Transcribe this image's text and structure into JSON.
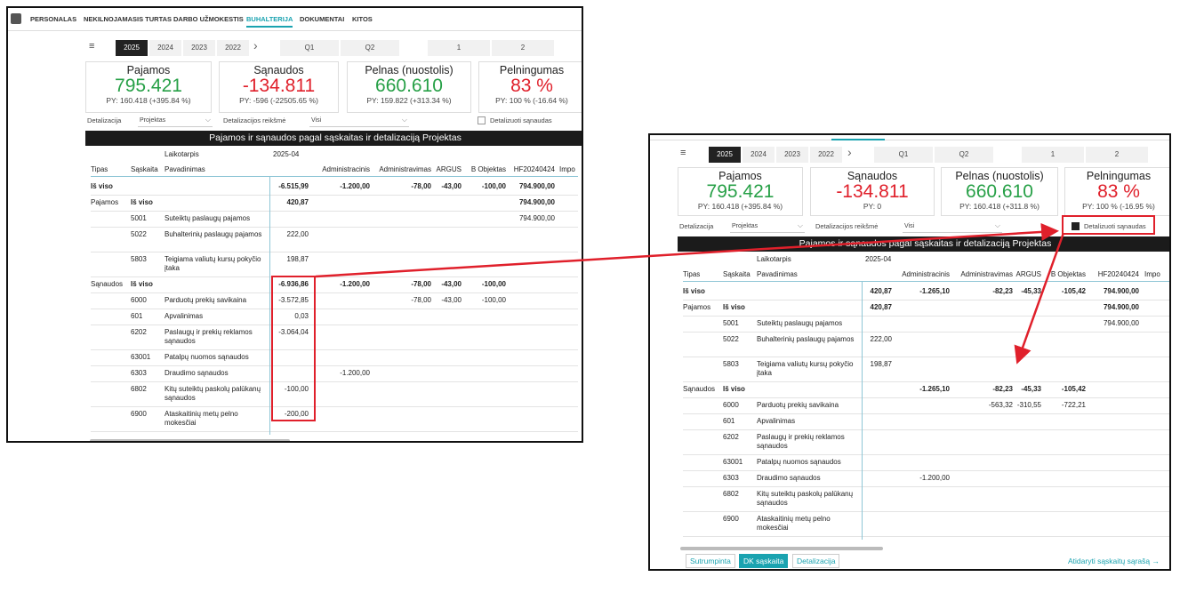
{
  "nav": {
    "items": [
      "PERSONALAS",
      "NEKILNOJAMASIS TURTAS",
      "DARBO UŽMOKESTIS",
      "BUHALTERIJA",
      "DOKUMENTAI",
      "KITOS"
    ]
  },
  "periods": {
    "years": [
      "2025",
      "2024",
      "2023",
      "2022"
    ],
    "quarters": [
      "Q1",
      "Q2"
    ],
    "months": [
      "1",
      "2"
    ]
  },
  "w1": {
    "cards": [
      {
        "title": "Pajamos",
        "value": "795.421",
        "py": "PY: 160.418 (+395.84 %)",
        "color": "green"
      },
      {
        "title": "Sąnaudos",
        "value": "-134.811",
        "py": "PY: -596 (-22505.65 %)",
        "color": "red"
      },
      {
        "title": "Pelnas (nuostolis)",
        "value": "660.610",
        "py": "PY: 159.822 (+313.34 %)",
        "color": "green"
      },
      {
        "title": "Pelningumas",
        "value": "83 %",
        "py": "PY: 100 % (-16.64 %)",
        "color": "red"
      }
    ],
    "filters": {
      "detalizacija_label": "Detalizacija",
      "detalizacija_value": "Projektas",
      "reiksme_label": "Detalizacijos reikšmė",
      "reiksme_value": "Visi",
      "checkbox_label": "Detalizuoti sąnaudas"
    },
    "table_title": "Pajamos ir sąnaudos pagal sąskaitas ir detalizaciją Projektas",
    "laikotarpis": "Laikotarpis",
    "period": "2025-04",
    "headers": [
      "Tipas",
      "Sąskaita",
      "Pavadinimas"
    ],
    "cols": [
      "Administracinis",
      "Administravimas",
      "ARGUS",
      "B Objektas",
      "HF20240424",
      "Impo"
    ],
    "rows": [
      {
        "tipas": "Iš viso",
        "saskaita": "",
        "pav": "",
        "total": "-6.515,99",
        "vals": [
          "-1.200,00",
          "-78,00",
          "-43,00",
          "-100,00",
          "794.900,00"
        ],
        "bold": true
      },
      {
        "tipas": "Pajamos",
        "saskaita": "Iš viso",
        "pav": "",
        "total": "420,87",
        "vals": [
          "",
          "",
          "",
          "",
          "794.900,00"
        ],
        "bold": true
      },
      {
        "tipas": "",
        "saskaita": "5001",
        "pav": "Suteiktų paslaugų pajamos",
        "total": "",
        "vals": [
          "",
          "",
          "",
          "",
          "794.900,00"
        ]
      },
      {
        "tipas": "",
        "saskaita": "5022",
        "pav": "Buhalterinių paslaugų pajamos",
        "total": "222,00",
        "vals": [
          "",
          "",
          "",
          "",
          ""
        ]
      },
      {
        "tipas": "",
        "saskaita": "5803",
        "pav": "Teigiama valiutų kursų pokyčio įtaka",
        "total": "198,87",
        "vals": [
          "",
          "",
          "",
          "",
          ""
        ]
      },
      {
        "tipas": "Sąnaudos",
        "saskaita": "Iš viso",
        "pav": "",
        "total": "-6.936,86",
        "vals": [
          "-1.200,00",
          "-78,00",
          "-43,00",
          "-100,00",
          ""
        ],
        "bold": true
      },
      {
        "tipas": "",
        "saskaita": "6000",
        "pav": "Parduotų prekių savikaina",
        "total": "-3.572,85",
        "vals": [
          "",
          "-78,00",
          "-43,00",
          "-100,00",
          ""
        ]
      },
      {
        "tipas": "",
        "saskaita": "601",
        "pav": "Apvalinimas",
        "total": "0,03",
        "vals": [
          "",
          "",
          "",
          "",
          ""
        ]
      },
      {
        "tipas": "",
        "saskaita": "6202",
        "pav": "Paslaugų ir prekių reklamos sąnaudos",
        "total": "-3.064,04",
        "vals": [
          "",
          "",
          "",
          "",
          ""
        ]
      },
      {
        "tipas": "",
        "saskaita": "63001",
        "pav": "Patalpų nuomos sąnaudos",
        "total": "",
        "vals": [
          "",
          "",
          "",
          "",
          ""
        ]
      },
      {
        "tipas": "",
        "saskaita": "6303",
        "pav": "Draudimo sąnaudos",
        "total": "",
        "vals": [
          "-1.200,00",
          "",
          "",
          "",
          ""
        ]
      },
      {
        "tipas": "",
        "saskaita": "6802",
        "pav": "Kitų suteiktų paskolų palūkanų sąnaudos",
        "total": "-100,00",
        "vals": [
          "",
          "",
          "",
          "",
          ""
        ]
      },
      {
        "tipas": "",
        "saskaita": "6900",
        "pav": "Ataskaitinių metų pelno mokesčiai",
        "total": "-200,00",
        "vals": [
          "",
          "",
          "",
          "",
          ""
        ]
      }
    ]
  },
  "w2": {
    "cards": [
      {
        "title": "Pajamos",
        "value": "795.421",
        "py": "PY: 160.418 (+395.84 %)",
        "color": "green"
      },
      {
        "title": "Sąnaudos",
        "value": "-134.811",
        "py": "PY: 0",
        "color": "red"
      },
      {
        "title": "Pelnas (nuostolis)",
        "value": "660.610",
        "py": "PY: 160.418 (+311.8 %)",
        "color": "green"
      },
      {
        "title": "Pelningumas",
        "value": "83 %",
        "py": "PY: 100 % (-16.95 %)",
        "color": "red"
      }
    ],
    "filters": {
      "detalizacija_label": "Detalizacija",
      "detalizacija_value": "Projektas",
      "reiksme_label": "Detalizacijos reikšmė",
      "reiksme_value": "Visi",
      "checkbox_label": "Detalizuoti sąnaudas"
    },
    "table_title": "Pajamos ir sąnaudos pagal sąskaitas ir detalizaciją Projektas",
    "laikotarpis": "Laikotarpis",
    "period": "2025-04",
    "headers": [
      "Tipas",
      "Sąskaita",
      "Pavadinimas"
    ],
    "cols": [
      "Administracinis",
      "Administravimas",
      "ARGUS",
      "B Objektas",
      "HF20240424",
      "Impo"
    ],
    "rows": [
      {
        "tipas": "Iš viso",
        "saskaita": "",
        "pav": "",
        "total": "420,87",
        "vals": [
          "-1.265,10",
          "-82,23",
          "-45,33",
          "-105,42",
          "794.900,00"
        ],
        "bold": true
      },
      {
        "tipas": "Pajamos",
        "saskaita": "Iš viso",
        "pav": "",
        "total": "420,87",
        "vals": [
          "",
          "",
          "",
          "",
          "794.900,00"
        ],
        "bold": true
      },
      {
        "tipas": "",
        "saskaita": "5001",
        "pav": "Suteiktų paslaugų pajamos",
        "total": "",
        "vals": [
          "",
          "",
          "",
          "",
          "794.900,00"
        ]
      },
      {
        "tipas": "",
        "saskaita": "5022",
        "pav": "Buhalterinių paslaugų pajamos",
        "total": "222,00",
        "vals": [
          "",
          "",
          "",
          "",
          ""
        ]
      },
      {
        "tipas": "",
        "saskaita": "5803",
        "pav": "Teigiama valiutų kursų pokyčio įtaka",
        "total": "198,87",
        "vals": [
          "",
          "",
          "",
          "",
          ""
        ]
      },
      {
        "tipas": "Sąnaudos",
        "saskaita": "Iš viso",
        "pav": "",
        "total": "",
        "vals": [
          "-1.265,10",
          "-82,23",
          "-45,33",
          "-105,42",
          ""
        ],
        "bold": true
      },
      {
        "tipas": "",
        "saskaita": "6000",
        "pav": "Parduotų prekių savikaina",
        "total": "",
        "vals": [
          "",
          "-563,32",
          "-310,55",
          "-722,21",
          ""
        ]
      },
      {
        "tipas": "",
        "saskaita": "601",
        "pav": "Apvalinimas",
        "total": "",
        "vals": [
          "",
          "",
          "",
          "",
          ""
        ]
      },
      {
        "tipas": "",
        "saskaita": "6202",
        "pav": "Paslaugų ir prekių reklamos sąnaudos",
        "total": "",
        "vals": [
          "",
          "",
          "",
          "",
          ""
        ]
      },
      {
        "tipas": "",
        "saskaita": "63001",
        "pav": "Patalpų nuomos sąnaudos",
        "total": "",
        "vals": [
          "",
          "",
          "",
          "",
          ""
        ]
      },
      {
        "tipas": "",
        "saskaita": "6303",
        "pav": "Draudimo sąnaudos",
        "total": "",
        "vals": [
          "-1.200,00",
          "",
          "",
          "",
          ""
        ]
      },
      {
        "tipas": "",
        "saskaita": "6802",
        "pav": "Kitų suteiktų paskolų palūkanų sąnaudos",
        "total": "",
        "vals": [
          "",
          "",
          "",
          "",
          ""
        ]
      },
      {
        "tipas": "",
        "saskaita": "6900",
        "pav": "Ataskaitinių metų pelno mokesčiai",
        "total": "",
        "vals": [
          "",
          "",
          "",
          "",
          ""
        ]
      }
    ],
    "bottom_tabs": [
      "Sutrumpinta",
      "DK sąskaita",
      "Detalizacija"
    ],
    "open_link": "Atidaryti sąskaitų sąrašą →"
  },
  "colors": {
    "accent": "#1aa3b0",
    "green": "#27a047",
    "red": "#e0202b",
    "annotation": "#e0202b"
  }
}
